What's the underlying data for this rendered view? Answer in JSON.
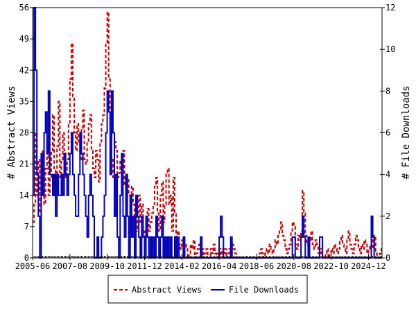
{
  "chart_data": {
    "type": "line",
    "x_start": "2005-06",
    "x_step": "month",
    "x_tick_labels": [
      "2005-06",
      "2007-08",
      "2009-10",
      "2011-12",
      "2014-02",
      "2016-04",
      "2018-06",
      "2020-08",
      "2022-10",
      "2024-12"
    ],
    "ylabel": "# Abstract Views",
    "y2label": "# File Downloads",
    "ylim": [
      0,
      56
    ],
    "y2lim": [
      0,
      12
    ],
    "yticks": [
      0,
      7,
      14,
      21,
      28,
      35,
      42,
      49,
      56
    ],
    "y2ticks": [
      0,
      2,
      4,
      6,
      8,
      10,
      12
    ],
    "legend_position": "bottom",
    "series": [
      {
        "name": "Abstract Views",
        "axis": "left",
        "color": "#cc0000",
        "style": "dashed",
        "values": [
          8,
          12,
          28,
          14,
          22,
          10,
          18,
          24,
          12,
          20,
          26,
          14,
          18,
          24,
          32,
          20,
          15,
          25,
          35,
          18,
          22,
          28,
          24,
          18,
          22,
          30,
          40,
          48,
          36,
          28,
          24,
          30,
          26,
          22,
          29,
          33,
          22,
          21,
          26,
          30,
          32,
          24,
          20,
          18,
          24,
          22,
          17,
          26,
          30,
          32,
          38,
          48,
          55,
          40,
          30,
          22,
          18,
          26,
          24,
          18,
          19,
          22,
          20,
          24,
          16,
          12,
          18,
          14,
          10,
          16,
          12,
          8,
          6,
          10,
          14,
          8,
          12,
          6,
          4,
          9,
          11,
          6,
          8,
          10,
          12,
          16,
          18,
          10,
          6,
          14,
          17,
          8,
          12,
          19,
          20,
          12,
          14,
          6,
          18,
          10,
          4,
          6,
          3,
          2,
          4,
          1,
          3,
          2,
          0,
          1,
          3,
          2,
          4,
          0,
          1,
          2,
          3,
          1,
          2,
          0,
          1,
          2,
          0,
          0,
          2,
          1,
          3,
          1,
          0,
          1,
          2,
          0,
          2,
          1,
          2,
          0,
          1,
          2,
          1,
          3,
          2,
          1,
          0,
          0,
          0,
          0,
          0,
          0,
          0,
          0,
          0,
          0,
          0,
          0,
          0,
          0,
          0,
          0,
          1,
          2,
          1,
          0,
          1,
          2,
          1,
          3,
          2,
          1,
          2,
          4,
          3,
          5,
          6,
          8,
          5,
          4,
          2,
          1,
          2,
          3,
          6,
          8,
          7,
          3,
          2,
          5,
          4,
          6,
          15,
          10,
          5,
          3,
          2,
          4,
          6,
          3,
          2,
          4,
          3,
          1,
          2,
          1,
          0,
          0,
          1,
          2,
          0,
          1,
          2,
          1,
          3,
          2,
          1,
          2,
          4,
          5,
          3,
          2,
          1,
          4,
          6,
          3,
          2,
          1,
          3,
          5,
          4,
          2,
          1,
          3,
          2,
          4,
          3,
          1,
          2,
          3,
          4,
          2,
          5,
          1,
          0,
          0,
          1,
          2
        ]
      },
      {
        "name": "File Downloads",
        "axis": "right",
        "color": "#0000bb",
        "style": "solid",
        "values": [
          3,
          12,
          9,
          4,
          2,
          0,
          5,
          3,
          6,
          7,
          5,
          8,
          4,
          4,
          3,
          4,
          2,
          4,
          3,
          3,
          4,
          3,
          5,
          4,
          3,
          4,
          5,
          6,
          4,
          3,
          2,
          2,
          4,
          6,
          5,
          4,
          3,
          2,
          1,
          3,
          4,
          3,
          2,
          0,
          0,
          1,
          0,
          0,
          1,
          2,
          3,
          6,
          8,
          7,
          4,
          8,
          6,
          2,
          4,
          1,
          0,
          3,
          5,
          2,
          1,
          4,
          2,
          0,
          3,
          1,
          2,
          0,
          3,
          2,
          1,
          0,
          2,
          1,
          0,
          2,
          1,
          0,
          1,
          0,
          1,
          0,
          2,
          1,
          0,
          1,
          2,
          0,
          1,
          0,
          1,
          0,
          1,
          0,
          0,
          1,
          0,
          1,
          0,
          0,
          0,
          1,
          0,
          0,
          0,
          0,
          0,
          0,
          0,
          0,
          0,
          0,
          0,
          1,
          0,
          0,
          0,
          0,
          0,
          0,
          0,
          0,
          0,
          0,
          0,
          0,
          1,
          2,
          1,
          0,
          0,
          0,
          0,
          0,
          1,
          0,
          0,
          0,
          0,
          0,
          0,
          0,
          0,
          0,
          0,
          0,
          0,
          0,
          0,
          0,
          0,
          0,
          0,
          0,
          0,
          0,
          0,
          0,
          0,
          0,
          0,
          0,
          0,
          0,
          0,
          0,
          0,
          0,
          0,
          0,
          0,
          0,
          0,
          0,
          0,
          0,
          0,
          1,
          1,
          0,
          0,
          0,
          0,
          1,
          2,
          1,
          0,
          0,
          1,
          0,
          0,
          0,
          0,
          0,
          0,
          0,
          1,
          1,
          0,
          0,
          0,
          0,
          0,
          0,
          0,
          0,
          0,
          0,
          0,
          0,
          0,
          0,
          0,
          0,
          0,
          0,
          0,
          0,
          0,
          0,
          0,
          0,
          0,
          0,
          0,
          0,
          0,
          0,
          0,
          0,
          0,
          0,
          2,
          1,
          0,
          0,
          0,
          0,
          0,
          0
        ]
      }
    ]
  }
}
